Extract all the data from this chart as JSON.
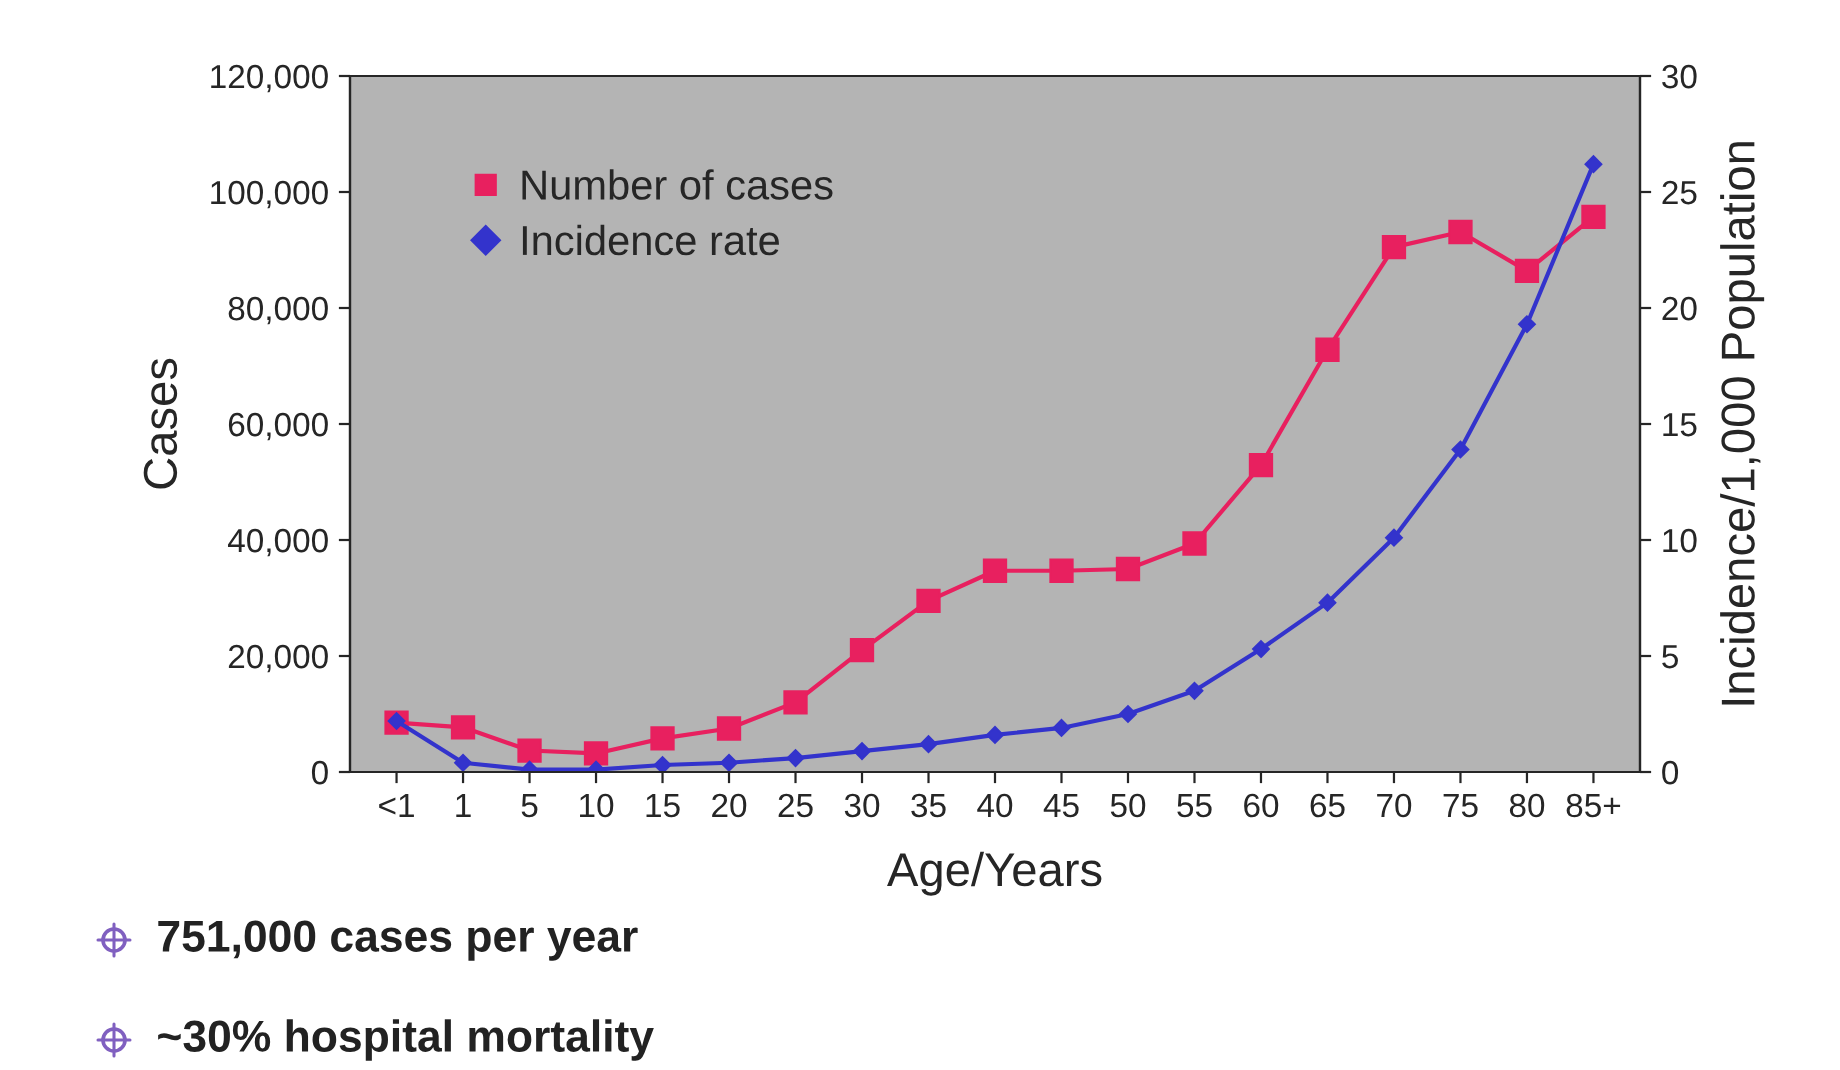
{
  "chart_data": {
    "type": "line",
    "xlabel": "Age/Years",
    "ylabel": "Cases",
    "y2label": "Incidence/1,000 Population",
    "categories": [
      "<1",
      "1",
      "5",
      "10",
      "15",
      "20",
      "25",
      "30",
      "35",
      "40",
      "45",
      "50",
      "55",
      "60",
      "65",
      "70",
      "75",
      "80",
      "85+"
    ],
    "series": [
      {
        "name": "Number of cases",
        "color": "#e8205f",
        "marker": "square",
        "values": [
          8500,
          7700,
          3700,
          3200,
          5800,
          7500,
          12000,
          21000,
          29500,
          34700,
          34700,
          35000,
          39400,
          52900,
          72800,
          90500,
          93100,
          86400,
          95700
        ]
      },
      {
        "name": "Incidence rate",
        "color": "#3333cc",
        "marker": "diamond",
        "axis": "y2",
        "values": [
          2.2,
          0.4,
          0.1,
          0.1,
          0.3,
          0.4,
          0.6,
          0.9,
          1.2,
          1.6,
          1.9,
          2.5,
          3.5,
          5.3,
          7.3,
          10.1,
          13.9,
          19.3,
          26.2
        ]
      }
    ],
    "ylim": [
      0,
      120000
    ],
    "yticks": [
      0,
      {
        "value": 20000,
        "label": "20,000"
      },
      {
        "value": 40000,
        "label": "40,000"
      },
      {
        "value": 60000,
        "label": "60,000"
      },
      {
        "value": 80000,
        "label": "80,000"
      },
      {
        "value": 100000,
        "label": "100,000"
      },
      {
        "value": 120000,
        "label": "120,000"
      }
    ],
    "y2lim": [
      0,
      30
    ],
    "y2ticks": [
      0,
      5,
      10,
      15,
      20,
      25,
      30
    ],
    "legend": "top left",
    "grid": false,
    "line_style": "solid",
    "annotations": [
      "751,000 cases per year",
      "~30% hospital mortality"
    ]
  }
}
